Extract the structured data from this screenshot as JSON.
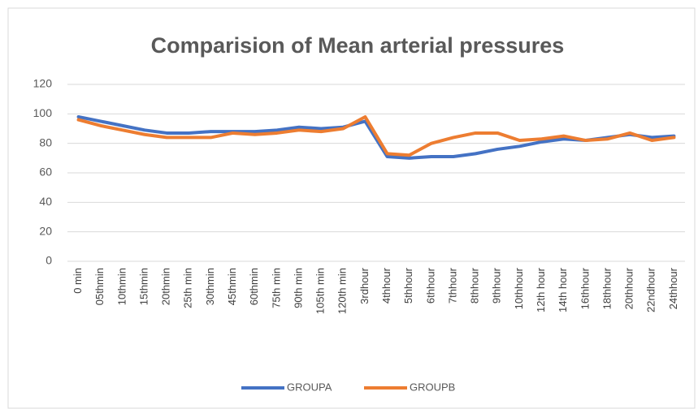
{
  "chart_data": {
    "type": "line",
    "title": "Comparision of Mean arterial pressures",
    "categories": [
      "0 min",
      "05thmin",
      "10thmin",
      "15thmin",
      "20thmin",
      "25th min",
      "30thmin",
      "45thmin",
      "60thmin",
      "75th min",
      "90th min",
      "105th min",
      "120th min",
      "3rdhour",
      "4thhour",
      "5thhour",
      "6thhour",
      "7thhour",
      "8thhour",
      "9thhour",
      "10thhour",
      "12th hour",
      "14th hour",
      "16thhour",
      "18thhour",
      "20thhour",
      "22ndhour",
      "24thhour"
    ],
    "series": [
      {
        "name": "GROUPA",
        "color": "#4472c4",
        "values": [
          98,
          95,
          92,
          89,
          87,
          87,
          88,
          88,
          88,
          89,
          91,
          90,
          91,
          95,
          71,
          70,
          71,
          71,
          73,
          76,
          78,
          81,
          83,
          82,
          84,
          86,
          84,
          85
        ]
      },
      {
        "name": "GROUPB",
        "color": "#ed7d31",
        "values": [
          96,
          92,
          89,
          86,
          84,
          84,
          84,
          87,
          86,
          87,
          89,
          88,
          90,
          98,
          73,
          72,
          80,
          84,
          87,
          87,
          82,
          83,
          85,
          82,
          83,
          87,
          82,
          84
        ]
      }
    ],
    "ylim": [
      0,
      120
    ],
    "yticks": [
      0,
      20,
      40,
      60,
      80,
      100,
      120
    ],
    "grid": true,
    "legend": "bottom"
  }
}
